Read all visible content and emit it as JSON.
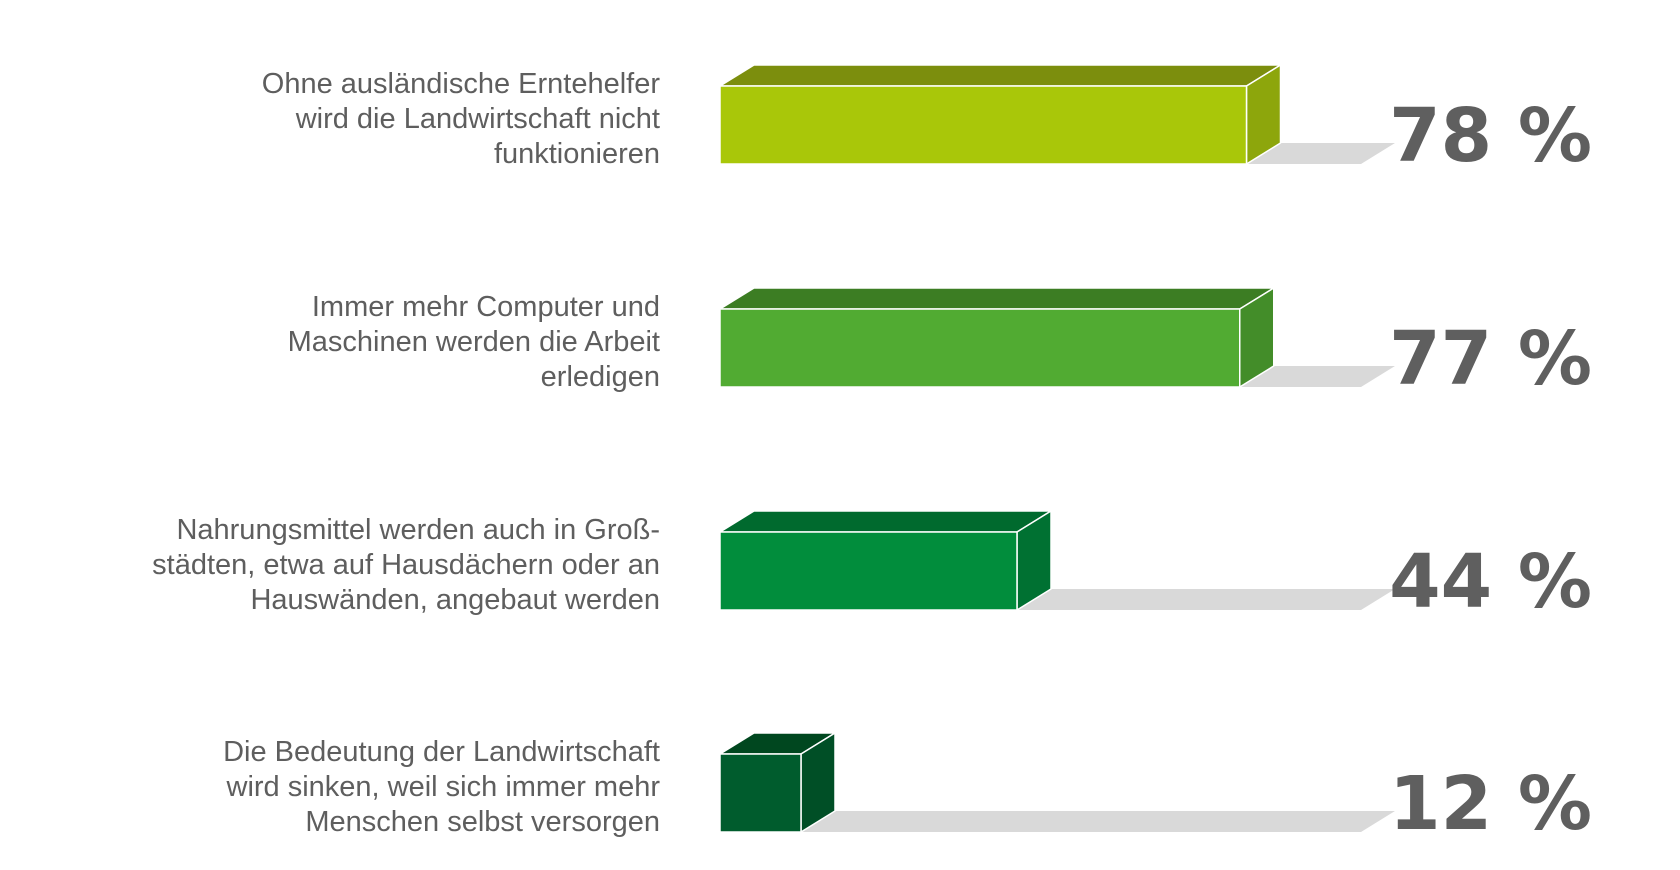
{
  "chart_data": {
    "type": "bar",
    "orientation": "horizontal",
    "categories": [
      [
        "Ohne ausländische Erntehelfer",
        "wird die Landwirtschaft nicht",
        "funktionieren"
      ],
      [
        "Immer mehr Computer und",
        "Maschinen werden die Arbeit",
        "erledigen"
      ],
      [
        "Nahrungsmittel werden auch in Groß-",
        "städten, etwa auf Hausdächern oder an",
        "Hauswänden, angebaut werden"
      ],
      [
        "Die Bedeutung der Landwirtschaft",
        "wird sinken, weil sich immer mehr",
        "Menschen selbst versorgen"
      ]
    ],
    "values": [
      78,
      77,
      44,
      12
    ],
    "value_labels": [
      "78 %",
      "77 %",
      "44 %",
      "12 %"
    ],
    "xlim": [
      0,
      100
    ],
    "grid": false,
    "legend": "none",
    "colors": {
      "bars_front": [
        "#a9c709",
        "#51ab32",
        "#018d3c",
        "#005c2d"
      ],
      "bars_top": [
        "#7c8e0d",
        "#3c7d23",
        "#006a2e",
        "#00471f"
      ],
      "bars_side": [
        "#8da60c",
        "#438d29",
        "#007132",
        "#004f26"
      ],
      "track": "#d9d9d9",
      "labels": "#5e5e5e",
      "values": "#5f5f5f"
    }
  }
}
